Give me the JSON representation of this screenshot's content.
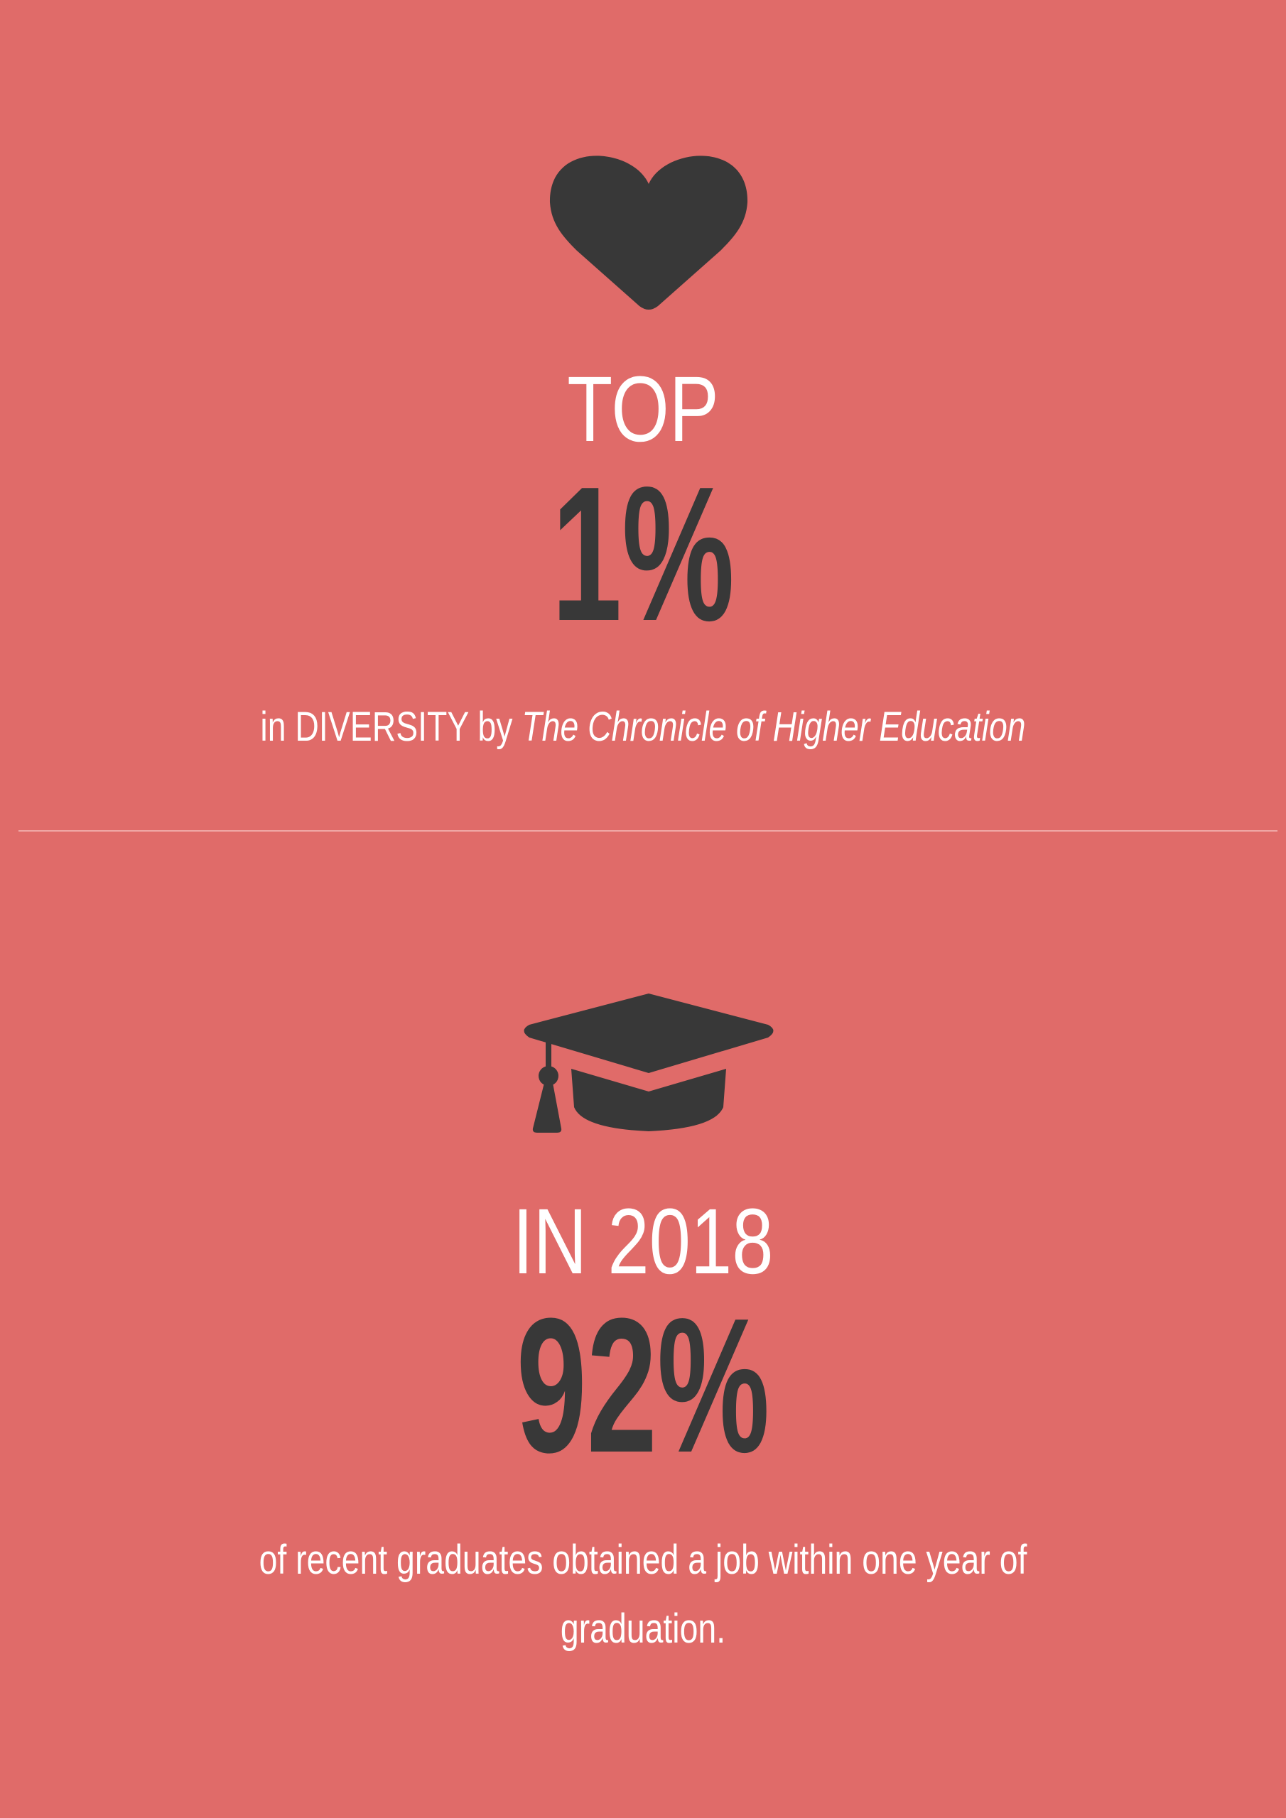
{
  "blocks": [
    {
      "label": "TOP",
      "stat": "1%",
      "description": {
        "text": "in DIVERSITY by",
        "source": "The Chronicle of Higher Education"
      }
    },
    {
      "label": "IN 2018",
      "stat": "92%",
      "description": {
        "text": "of recent graduates obtained a job within one year of graduation."
      }
    }
  ]
}
